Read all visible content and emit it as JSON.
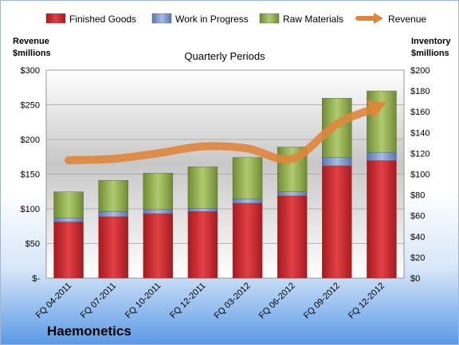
{
  "chart_data": {
    "type": "bar",
    "stacked": true,
    "subtitle": "Quarterly Periods",
    "company": "Haemonetics",
    "categories": [
      "FQ 04-2011",
      "FQ 07-2011",
      "FQ 10-2011",
      "FQ 12-2011",
      "FQ 03-2012",
      "FQ 06-2012",
      "FQ 09-2012",
      "FQ 12-2012"
    ],
    "left_axis": {
      "title_lines": [
        "Revenue",
        "$millions"
      ],
      "ylim": [
        0,
        300
      ],
      "ticks": [
        0,
        50,
        100,
        150,
        200,
        250,
        300
      ],
      "tick_labels": [
        "$-",
        "$50",
        "$100",
        "$150",
        "$200",
        "$250",
        "$300"
      ]
    },
    "right_axis": {
      "title_lines": [
        "Inventory",
        "$millions"
      ],
      "ylim": [
        0,
        200
      ],
      "ticks": [
        0,
        20,
        40,
        60,
        80,
        100,
        120,
        140,
        160,
        180,
        200
      ],
      "tick_labels": [
        "$0",
        "$20",
        "$40",
        "$60",
        "$80",
        "$100",
        "$120",
        "$140",
        "$160",
        "$180",
        "$200"
      ]
    },
    "series": [
      {
        "name": "Finished Goods",
        "axis": "right",
        "color": "#c0282c",
        "values": [
          54,
          59,
          62,
          64,
          72,
          79,
          108,
          113
        ]
      },
      {
        "name": "Work in Progress",
        "axis": "right",
        "color": "#7593c9",
        "values": [
          4,
          5,
          4,
          3,
          4,
          4,
          8,
          8
        ]
      },
      {
        "name": "Raw Materials",
        "axis": "right",
        "color": "#8fae46",
        "values": [
          25,
          30,
          35,
          40,
          40,
          43,
          57,
          59
        ]
      },
      {
        "name": "Revenue",
        "axis": "left",
        "type": "line",
        "color": "#e0863a",
        "values": [
          170,
          172,
          180,
          190,
          187,
          172,
          222,
          250
        ]
      }
    ],
    "grid": true,
    "legend_position": "top"
  }
}
